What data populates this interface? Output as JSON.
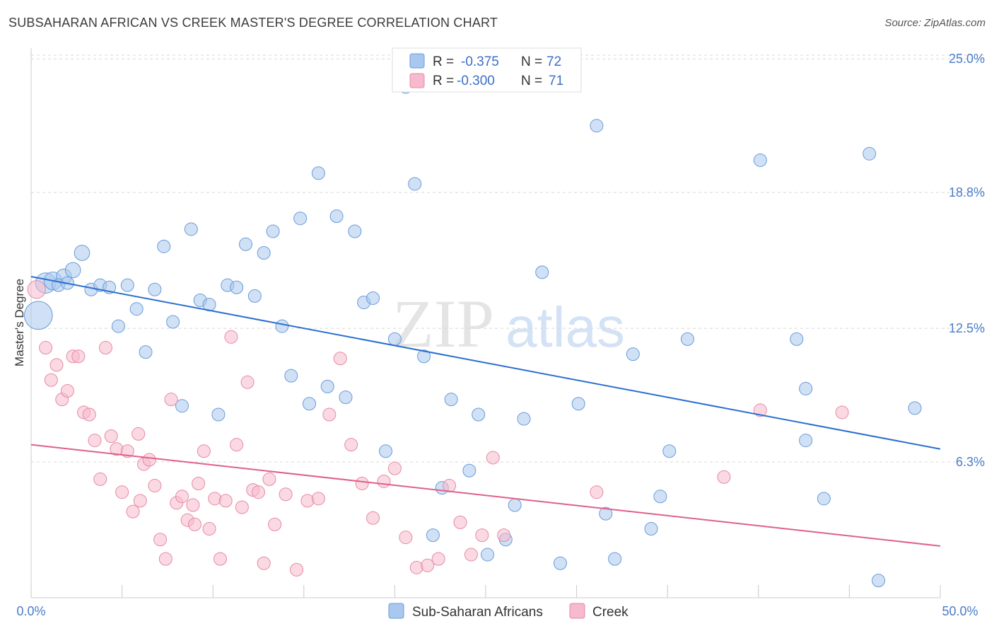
{
  "header": {
    "title": "SUBSAHARAN AFRICAN VS CREEK MASTER'S DEGREE CORRELATION CHART",
    "source": "Source: ZipAtlas.com"
  },
  "watermark": {
    "part1": "ZIP",
    "part2": "atlas"
  },
  "chart_data": {
    "type": "scatter",
    "title": "SUBSAHARAN AFRICAN VS CREEK MASTER'S DEGREE CORRELATION CHART",
    "xlabel": "",
    "ylabel": "Master's Degree",
    "xlim": [
      0,
      50
    ],
    "ylim": [
      0,
      25.5
    ],
    "x_tick_labels": [
      "0.0%",
      "50.0%"
    ],
    "y_ticks": [
      6.3,
      12.5,
      18.8,
      25.0
    ],
    "y_tick_labels": [
      "6.3%",
      "12.5%",
      "18.8%",
      "25.0%"
    ],
    "grid": true,
    "legend_position": "top-center",
    "correlation_legend": [
      {
        "series": "Sub-Saharan Africans",
        "r_label": "R = ",
        "r": "-0.375",
        "n_label": "N = ",
        "n": "72"
      },
      {
        "series": "Creek",
        "r_label": "R = ",
        "r": "-0.300",
        "n_label": "N = ",
        "n": "71"
      }
    ],
    "series": [
      {
        "name": "Sub-Saharan Africans",
        "color": "#a9c8ef",
        "stroke": "#6a9bd8",
        "line_color": "#2a6fcf",
        "trend": {
          "x": [
            0,
            50
          ],
          "y": [
            14.9,
            6.9
          ]
        },
        "points": [
          {
            "x": 0.4,
            "y": 13.1,
            "s": 2.2
          },
          {
            "x": 0.8,
            "y": 14.6,
            "s": 1.6
          },
          {
            "x": 1.2,
            "y": 14.7,
            "s": 1.4
          },
          {
            "x": 1.8,
            "y": 14.9,
            "s": 1.2
          },
          {
            "x": 2.3,
            "y": 15.2,
            "s": 1.2
          },
          {
            "x": 2.8,
            "y": 16.0,
            "s": 1.2
          },
          {
            "x": 3.3,
            "y": 14.3,
            "s": 1
          },
          {
            "x": 3.8,
            "y": 14.5,
            "s": 1
          },
          {
            "x": 4.3,
            "y": 14.4,
            "s": 1
          },
          {
            "x": 4.8,
            "y": 12.6,
            "s": 1
          },
          {
            "x": 5.3,
            "y": 14.5,
            "s": 1
          },
          {
            "x": 5.8,
            "y": 13.4,
            "s": 1
          },
          {
            "x": 6.3,
            "y": 11.4,
            "s": 1
          },
          {
            "x": 6.8,
            "y": 14.3,
            "s": 1
          },
          {
            "x": 7.3,
            "y": 16.3,
            "s": 1
          },
          {
            "x": 7.8,
            "y": 12.8,
            "s": 1
          },
          {
            "x": 8.3,
            "y": 8.9,
            "s": 1
          },
          {
            "x": 8.8,
            "y": 17.1,
            "s": 1
          },
          {
            "x": 9.3,
            "y": 13.8,
            "s": 1
          },
          {
            "x": 9.8,
            "y": 13.6,
            "s": 1
          },
          {
            "x": 10.3,
            "y": 8.5,
            "s": 1
          },
          {
            "x": 10.8,
            "y": 14.5,
            "s": 1
          },
          {
            "x": 11.3,
            "y": 14.4,
            "s": 1
          },
          {
            "x": 11.8,
            "y": 16.4,
            "s": 1
          },
          {
            "x": 12.3,
            "y": 14.0,
            "s": 1
          },
          {
            "x": 12.8,
            "y": 16.0,
            "s": 1
          },
          {
            "x": 13.3,
            "y": 17.0,
            "s": 1
          },
          {
            "x": 13.8,
            "y": 12.6,
            "s": 1
          },
          {
            "x": 14.3,
            "y": 10.3,
            "s": 1
          },
          {
            "x": 14.8,
            "y": 17.6,
            "s": 1
          },
          {
            "x": 15.3,
            "y": 9.0,
            "s": 1
          },
          {
            "x": 15.8,
            "y": 19.7,
            "s": 1
          },
          {
            "x": 16.3,
            "y": 9.8,
            "s": 1
          },
          {
            "x": 16.8,
            "y": 17.7,
            "s": 1
          },
          {
            "x": 17.3,
            "y": 9.3,
            "s": 1
          },
          {
            "x": 17.8,
            "y": 17.0,
            "s": 1
          },
          {
            "x": 18.3,
            "y": 13.7,
            "s": 1
          },
          {
            "x": 18.8,
            "y": 13.9,
            "s": 1
          },
          {
            "x": 19.5,
            "y": 6.8,
            "s": 1
          },
          {
            "x": 20.0,
            "y": 12.0,
            "s": 1
          },
          {
            "x": 20.6,
            "y": 23.7,
            "s": 1
          },
          {
            "x": 21.1,
            "y": 19.2,
            "s": 1
          },
          {
            "x": 21.6,
            "y": 11.2,
            "s": 1
          },
          {
            "x": 22.1,
            "y": 2.9,
            "s": 1
          },
          {
            "x": 22.6,
            "y": 5.1,
            "s": 1
          },
          {
            "x": 23.1,
            "y": 9.2,
            "s": 1
          },
          {
            "x": 24.1,
            "y": 5.9,
            "s": 1
          },
          {
            "x": 24.6,
            "y": 8.5,
            "s": 1
          },
          {
            "x": 25.1,
            "y": 2.0,
            "s": 1
          },
          {
            "x": 26.1,
            "y": 2.7,
            "s": 1
          },
          {
            "x": 26.6,
            "y": 4.3,
            "s": 1
          },
          {
            "x": 27.1,
            "y": 8.3,
            "s": 1
          },
          {
            "x": 28.1,
            "y": 15.1,
            "s": 1
          },
          {
            "x": 29.1,
            "y": 1.6,
            "s": 1
          },
          {
            "x": 30.1,
            "y": 9.0,
            "s": 1
          },
          {
            "x": 31.1,
            "y": 21.9,
            "s": 1
          },
          {
            "x": 31.6,
            "y": 3.9,
            "s": 1
          },
          {
            "x": 32.1,
            "y": 1.8,
            "s": 1
          },
          {
            "x": 33.1,
            "y": 11.3,
            "s": 1
          },
          {
            "x": 34.1,
            "y": 3.2,
            "s": 1
          },
          {
            "x": 34.6,
            "y": 4.7,
            "s": 1
          },
          {
            "x": 35.1,
            "y": 6.8,
            "s": 1
          },
          {
            "x": 36.1,
            "y": 12.0,
            "s": 1
          },
          {
            "x": 40.1,
            "y": 20.3,
            "s": 1
          },
          {
            "x": 42.1,
            "y": 12.0,
            "s": 1
          },
          {
            "x": 42.6,
            "y": 9.7,
            "s": 1
          },
          {
            "x": 42.6,
            "y": 7.3,
            "s": 1
          },
          {
            "x": 43.6,
            "y": 4.6,
            "s": 1
          },
          {
            "x": 46.1,
            "y": 20.6,
            "s": 1
          },
          {
            "x": 46.6,
            "y": 0.8,
            "s": 1
          },
          {
            "x": 48.6,
            "y": 8.8,
            "s": 1
          },
          {
            "x": 1.5,
            "y": 14.5,
            "s": 1
          },
          {
            "x": 2.0,
            "y": 14.6,
            "s": 1
          }
        ]
      },
      {
        "name": "Creek",
        "color": "#f7b9cc",
        "stroke": "#e58aa7",
        "line_color": "#e0608a",
        "trend": {
          "x": [
            0,
            50
          ],
          "y": [
            7.1,
            2.4
          ]
        },
        "points": [
          {
            "x": 0.3,
            "y": 14.3,
            "s": 1.4
          },
          {
            "x": 0.8,
            "y": 11.6,
            "s": 1
          },
          {
            "x": 1.1,
            "y": 10.1,
            "s": 1
          },
          {
            "x": 1.4,
            "y": 10.8,
            "s": 1
          },
          {
            "x": 1.7,
            "y": 9.2,
            "s": 1
          },
          {
            "x": 2.0,
            "y": 9.6,
            "s": 1
          },
          {
            "x": 2.3,
            "y": 11.2,
            "s": 1
          },
          {
            "x": 2.6,
            "y": 11.2,
            "s": 1
          },
          {
            "x": 2.9,
            "y": 8.6,
            "s": 1
          },
          {
            "x": 3.2,
            "y": 8.5,
            "s": 1
          },
          {
            "x": 3.5,
            "y": 7.3,
            "s": 1
          },
          {
            "x": 3.8,
            "y": 5.5,
            "s": 1
          },
          {
            "x": 4.1,
            "y": 11.6,
            "s": 1
          },
          {
            "x": 4.4,
            "y": 7.5,
            "s": 1
          },
          {
            "x": 4.7,
            "y": 6.9,
            "s": 1
          },
          {
            "x": 5.0,
            "y": 4.9,
            "s": 1
          },
          {
            "x": 5.3,
            "y": 6.8,
            "s": 1
          },
          {
            "x": 5.6,
            "y": 4.0,
            "s": 1
          },
          {
            "x": 5.9,
            "y": 7.6,
            "s": 1
          },
          {
            "x": 6.2,
            "y": 6.2,
            "s": 1
          },
          {
            "x": 6.5,
            "y": 6.4,
            "s": 1
          },
          {
            "x": 6.8,
            "y": 5.2,
            "s": 1
          },
          {
            "x": 7.1,
            "y": 2.7,
            "s": 1
          },
          {
            "x": 7.4,
            "y": 1.8,
            "s": 1
          },
          {
            "x": 7.7,
            "y": 9.2,
            "s": 1
          },
          {
            "x": 8.0,
            "y": 4.4,
            "s": 1
          },
          {
            "x": 8.3,
            "y": 4.7,
            "s": 1
          },
          {
            "x": 8.6,
            "y": 3.6,
            "s": 1
          },
          {
            "x": 8.9,
            "y": 4.3,
            "s": 1
          },
          {
            "x": 9.2,
            "y": 5.3,
            "s": 1
          },
          {
            "x": 9.5,
            "y": 6.8,
            "s": 1
          },
          {
            "x": 9.8,
            "y": 3.2,
            "s": 1
          },
          {
            "x": 10.1,
            "y": 4.6,
            "s": 1
          },
          {
            "x": 10.4,
            "y": 1.8,
            "s": 1
          },
          {
            "x": 10.7,
            "y": 4.5,
            "s": 1
          },
          {
            "x": 11.0,
            "y": 12.1,
            "s": 1
          },
          {
            "x": 11.3,
            "y": 7.1,
            "s": 1
          },
          {
            "x": 11.6,
            "y": 4.2,
            "s": 1
          },
          {
            "x": 11.9,
            "y": 10.0,
            "s": 1
          },
          {
            "x": 12.2,
            "y": 5.0,
            "s": 1
          },
          {
            "x": 12.5,
            "y": 4.9,
            "s": 1
          },
          {
            "x": 12.8,
            "y": 1.6,
            "s": 1
          },
          {
            "x": 13.1,
            "y": 5.5,
            "s": 1
          },
          {
            "x": 13.4,
            "y": 3.4,
            "s": 1
          },
          {
            "x": 14.0,
            "y": 4.8,
            "s": 1
          },
          {
            "x": 14.6,
            "y": 1.3,
            "s": 1
          },
          {
            "x": 15.2,
            "y": 4.5,
            "s": 1
          },
          {
            "x": 15.8,
            "y": 4.6,
            "s": 1
          },
          {
            "x": 16.4,
            "y": 8.5,
            "s": 1
          },
          {
            "x": 17.0,
            "y": 11.1,
            "s": 1
          },
          {
            "x": 17.6,
            "y": 7.1,
            "s": 1
          },
          {
            "x": 18.2,
            "y": 5.3,
            "s": 1
          },
          {
            "x": 18.8,
            "y": 3.7,
            "s": 1
          },
          {
            "x": 19.4,
            "y": 5.4,
            "s": 1
          },
          {
            "x": 20.0,
            "y": 6.0,
            "s": 1
          },
          {
            "x": 20.6,
            "y": 2.8,
            "s": 1
          },
          {
            "x": 21.2,
            "y": 1.4,
            "s": 1
          },
          {
            "x": 21.8,
            "y": 1.5,
            "s": 1
          },
          {
            "x": 22.4,
            "y": 1.8,
            "s": 1
          },
          {
            "x": 23.0,
            "y": 5.2,
            "s": 1
          },
          {
            "x": 23.6,
            "y": 3.5,
            "s": 1
          },
          {
            "x": 24.2,
            "y": 2.0,
            "s": 1
          },
          {
            "x": 24.8,
            "y": 2.9,
            "s": 1
          },
          {
            "x": 25.4,
            "y": 6.5,
            "s": 1
          },
          {
            "x": 26.0,
            "y": 2.9,
            "s": 1
          },
          {
            "x": 31.1,
            "y": 4.9,
            "s": 1
          },
          {
            "x": 38.1,
            "y": 5.6,
            "s": 1
          },
          {
            "x": 40.1,
            "y": 8.7,
            "s": 1
          },
          {
            "x": 44.6,
            "y": 8.6,
            "s": 1
          },
          {
            "x": 6.0,
            "y": 4.5,
            "s": 1
          },
          {
            "x": 9.0,
            "y": 3.4,
            "s": 1
          }
        ]
      }
    ]
  }
}
